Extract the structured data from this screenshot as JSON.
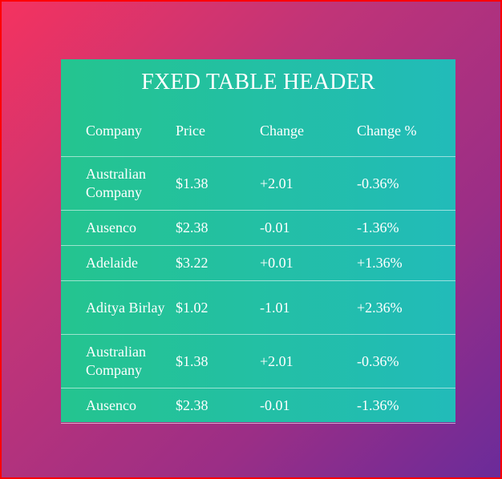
{
  "title": "FXED TABLE HEADER",
  "columns": [
    "Company",
    "Price",
    "Change",
    "Change %"
  ],
  "rows": [
    {
      "company": "Australian Company",
      "price": "$1.38",
      "change": "+2.01",
      "change_pct": "-0.36%"
    },
    {
      "company": "Ausenco",
      "price": "$2.38",
      "change": "-0.01",
      "change_pct": "-1.36%"
    },
    {
      "company": "Adelaide",
      "price": "$3.22",
      "change": "+0.01",
      "change_pct": "+1.36%"
    },
    {
      "company": "Aditya Birlay",
      "price": "$1.02",
      "change": "-1.01",
      "change_pct": "+2.36%"
    },
    {
      "company": "Australian Company",
      "price": "$1.38",
      "change": "+2.01",
      "change_pct": "-0.36%"
    },
    {
      "company": "Ausenco",
      "price": "$2.38",
      "change": "-0.01",
      "change_pct": "-1.36%"
    }
  ],
  "colors": {
    "frame_border": "#ff0000",
    "panel_gradient_start": "#24c48f",
    "panel_gradient_end": "#22bbb9",
    "text": "#ffffff"
  }
}
